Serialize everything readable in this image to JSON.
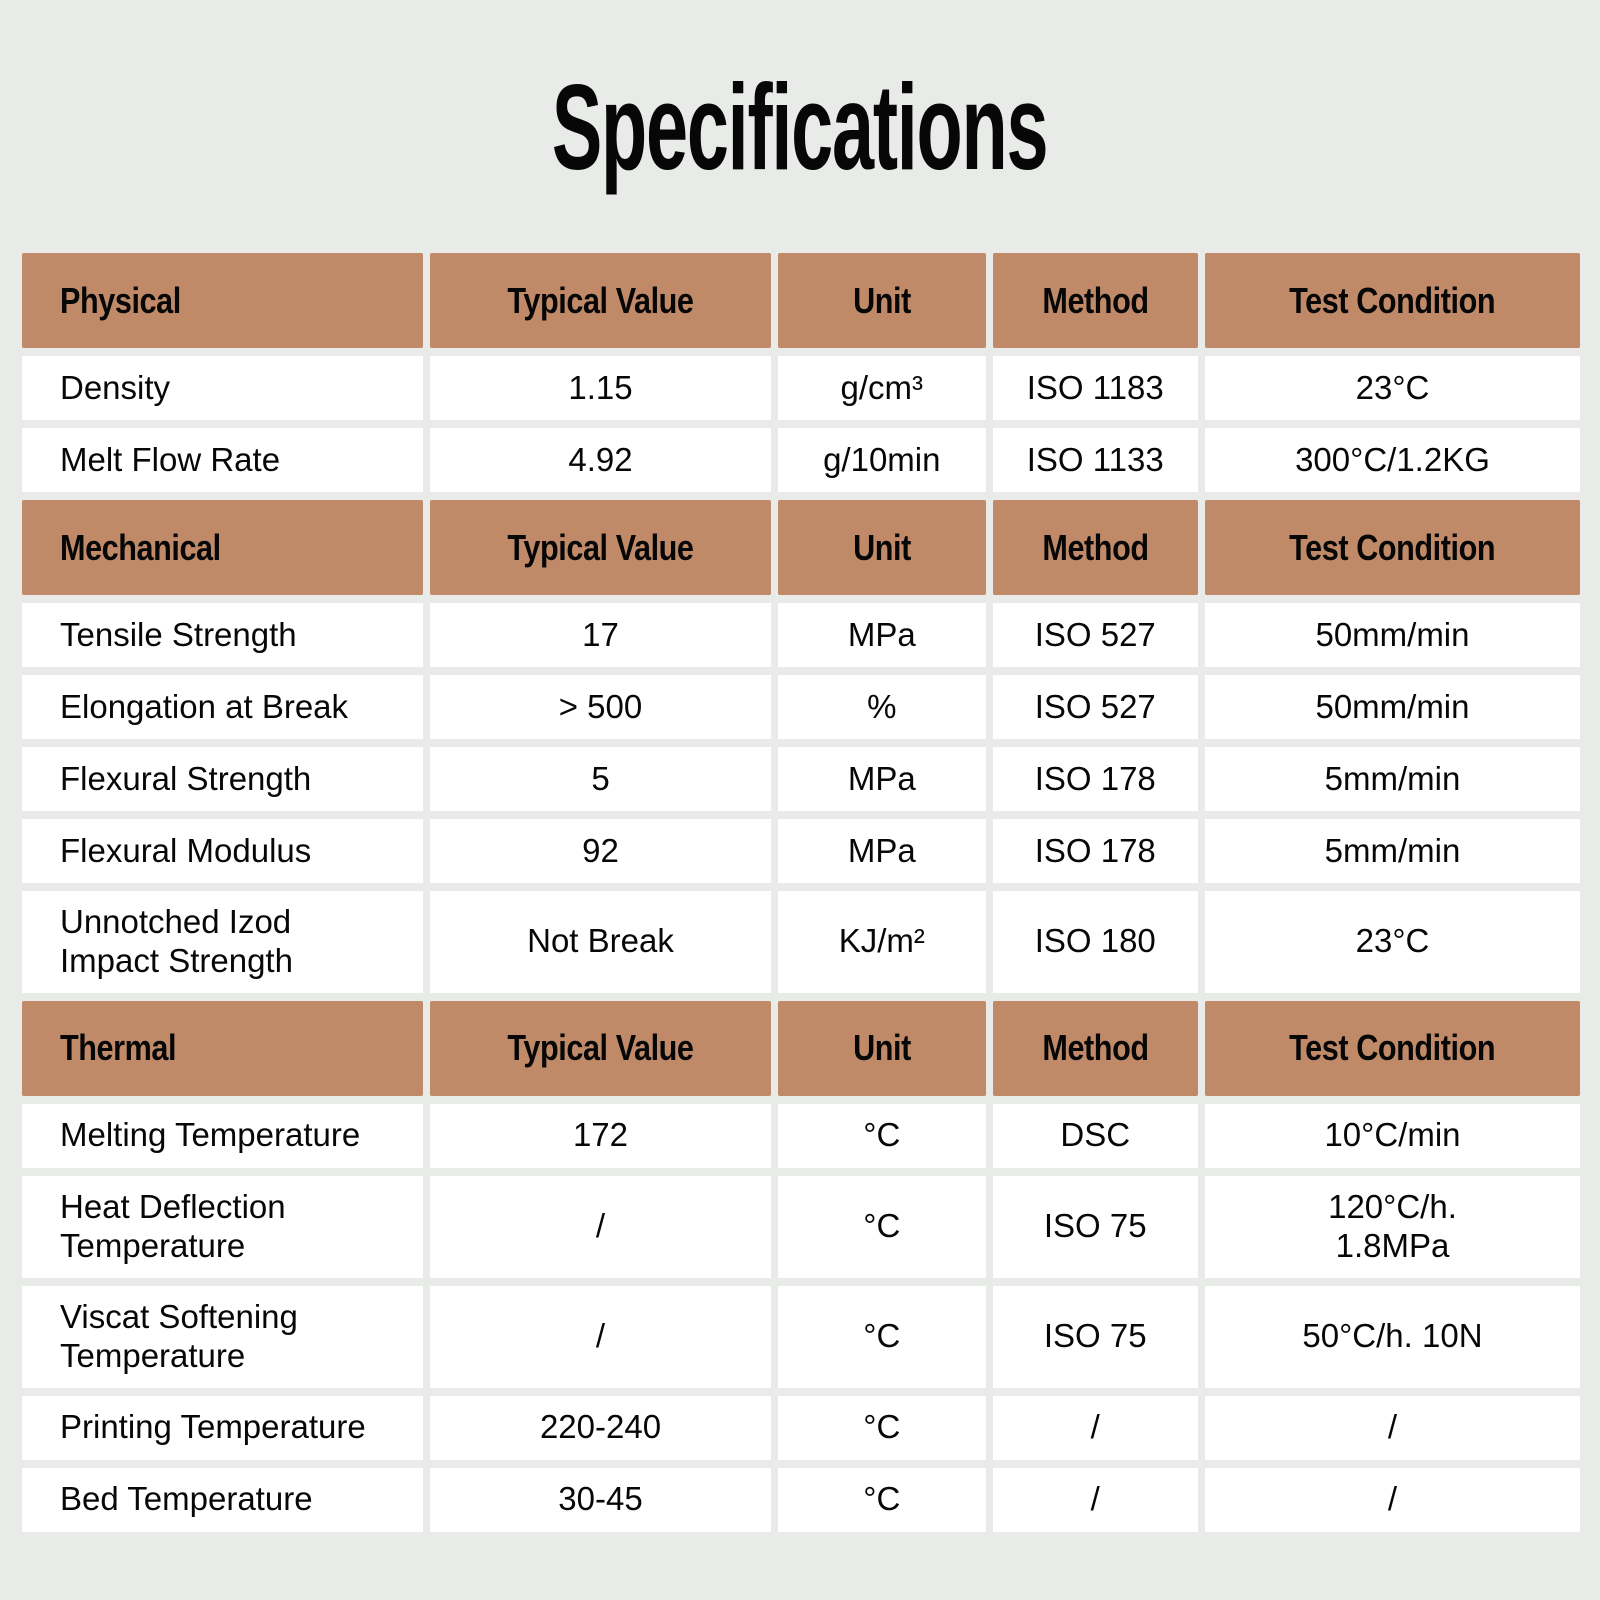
{
  "page": {
    "title": "Specifications",
    "colors": {
      "accent": "#c08a68",
      "background": "#e9ebe9",
      "cell": "#ffffff",
      "text": "#070707"
    }
  },
  "table": {
    "sections": [
      {
        "header": {
          "category": "Physical",
          "typical_value": "Typical Value",
          "unit": "Unit",
          "method": "Method",
          "test_condition": "Test Condition"
        },
        "rows": [
          {
            "property": "Density",
            "value": "1.15",
            "unit": "g/cm³",
            "method": "ISO 1183",
            "condition": "23°C"
          },
          {
            "property": "Melt Flow Rate",
            "value": "4.92",
            "unit": "g/10min",
            "method": "ISO 1133",
            "condition": "300°C/1.2KG"
          }
        ]
      },
      {
        "header": {
          "category": "Mechanical",
          "typical_value": "Typical Value",
          "unit": "Unit",
          "method": "Method",
          "test_condition": "Test Condition"
        },
        "rows": [
          {
            "property": "Tensile Strength",
            "value": "17",
            "unit": "MPa",
            "method": "ISO 527",
            "condition": "50mm/min"
          },
          {
            "property": "Elongation at Break",
            "value": "> 500",
            "unit": "%",
            "method": "ISO 527",
            "condition": "50mm/min"
          },
          {
            "property": "Flexural Strength",
            "value": "5",
            "unit": "MPa",
            "method": "ISO 178",
            "condition": "5mm/min"
          },
          {
            "property": "Flexural Modulus",
            "value": "92",
            "unit": "MPa",
            "method": "ISO 178",
            "condition": "5mm/min"
          },
          {
            "property": "Unnotched Izod\nImpact Strength",
            "value": "Not Break",
            "unit": "KJ/m²",
            "method": "ISO 180",
            "condition": "23°C"
          }
        ]
      },
      {
        "header": {
          "category": "Thermal",
          "typical_value": "Typical Value",
          "unit": "Unit",
          "method": "Method",
          "test_condition": "Test Condition"
        },
        "rows": [
          {
            "property": "Melting Temperature",
            "value": "172",
            "unit": "°C",
            "method": "DSC",
            "condition": "10°C/min"
          },
          {
            "property": "Heat Deflection\nTemperature",
            "value": "/",
            "unit": "°C",
            "method": "ISO 75",
            "condition": "120°C/h.\n1.8MPa"
          },
          {
            "property": "Viscat Softening\nTemperature",
            "value": "/",
            "unit": "°C",
            "method": "ISO 75",
            "condition": "50°C/h. 10N"
          },
          {
            "property": "Printing Temperature",
            "value": "220-240",
            "unit": "°C",
            "method": "/",
            "condition": "/"
          },
          {
            "property": "Bed Temperature",
            "value": "30-45",
            "unit": "°C",
            "method": "/",
            "condition": "/"
          }
        ]
      }
    ]
  }
}
